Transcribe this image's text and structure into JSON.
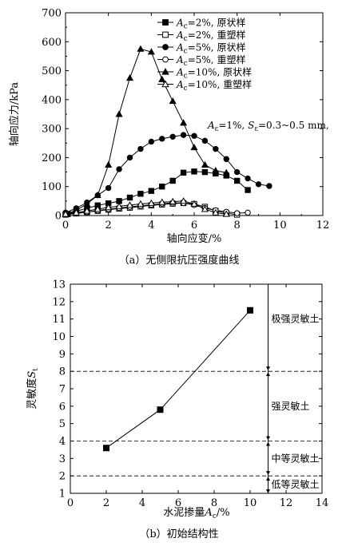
{
  "chart_data": [
    {
      "type": "line",
      "caption": "（a）无侧限抗压强度曲线",
      "xlabel": "轴向应变/%",
      "ylabel": "轴向应力/kPa",
      "xlim": [
        0,
        12
      ],
      "ylim": [
        0,
        700
      ],
      "xticks": [
        "0",
        "2",
        "4",
        "6",
        "8",
        "10",
        "12"
      ],
      "yticks": [
        "0",
        "100",
        "200",
        "300",
        "400",
        "500",
        "600",
        "700"
      ],
      "annotation": "Aε=1%, Sε=0.3~0.5 mm,",
      "legend_position": "top-right",
      "series": [
        {
          "name": "Ac=2%, 原状样",
          "marker": "square-filled",
          "points": [
            [
              0.1,
              5
            ],
            [
              0.5,
              15
            ],
            [
              1,
              25
            ],
            [
              1.5,
              35
            ],
            [
              2,
              42
            ],
            [
              2.5,
              50
            ],
            [
              3,
              62
            ],
            [
              3.5,
              75
            ],
            [
              4,
              85
            ],
            [
              4.5,
              100
            ],
            [
              5,
              120
            ],
            [
              5.5,
              148
            ],
            [
              6,
              152
            ],
            [
              6.5,
              150
            ],
            [
              7,
              145
            ],
            [
              7.5,
              138
            ],
            [
              8,
              120
            ],
            [
              8.5,
              88
            ]
          ]
        },
        {
          "name": "Ac=2%, 重塑样",
          "marker": "square-open",
          "points": [
            [
              0,
              3
            ],
            [
              0.5,
              7
            ],
            [
              1,
              12
            ],
            [
              1.5,
              16
            ],
            [
              2,
              20
            ],
            [
              2.5,
              24
            ],
            [
              3,
              27
            ],
            [
              3.5,
              31
            ],
            [
              4,
              35
            ],
            [
              4.5,
              38
            ],
            [
              5,
              41
            ],
            [
              5.5,
              43
            ],
            [
              6,
              40
            ],
            [
              6.5,
              30
            ],
            [
              7,
              16
            ],
            [
              7.5,
              8
            ],
            [
              8,
              3
            ]
          ]
        },
        {
          "name": "Ac=5%, 原状样",
          "marker": "circle-filled",
          "points": [
            [
              0,
              10
            ],
            [
              0.5,
              25
            ],
            [
              1,
              45
            ],
            [
              1.5,
              70
            ],
            [
              2,
              95
            ],
            [
              2.5,
              160
            ],
            [
              3,
              200
            ],
            [
              3.5,
              230
            ],
            [
              4,
              255
            ],
            [
              4.5,
              265
            ],
            [
              5,
              272
            ],
            [
              5.5,
              278
            ],
            [
              6,
              275
            ],
            [
              6.5,
              258
            ],
            [
              7,
              230
            ],
            [
              7.5,
              195
            ],
            [
              8,
              150
            ],
            [
              8.5,
              128
            ],
            [
              9,
              108
            ],
            [
              9.5,
              102
            ]
          ]
        },
        {
          "name": "Ac=5%, 重塑样",
          "marker": "circle-open",
          "points": [
            [
              0,
              5
            ],
            [
              0.5,
              8
            ],
            [
              1,
              12
            ],
            [
              1.5,
              17
            ],
            [
              2,
              22
            ],
            [
              2.5,
              26
            ],
            [
              3,
              30
            ],
            [
              3.5,
              34
            ],
            [
              4,
              37
            ],
            [
              4.5,
              41
            ],
            [
              5,
              44
            ],
            [
              5.5,
              43
            ],
            [
              6,
              36
            ],
            [
              6.5,
              26
            ],
            [
              7,
              18
            ],
            [
              7.5,
              13
            ],
            [
              8,
              8
            ],
            [
              8.5,
              10
            ]
          ]
        },
        {
          "name": "Ac=10%, 原状样",
          "marker": "triangle-filled",
          "points": [
            [
              0,
              5
            ],
            [
              0.5,
              18
            ],
            [
              1,
              40
            ],
            [
              1.5,
              70
            ],
            [
              2,
              175
            ],
            [
              2.5,
              350
            ],
            [
              3,
              475
            ],
            [
              3.5,
              575
            ],
            [
              4,
              565
            ],
            [
              4.5,
              470
            ],
            [
              5,
              395
            ],
            [
              5.5,
              320
            ],
            [
              6,
              235
            ],
            [
              6.5,
              175
            ],
            [
              7,
              155
            ],
            [
              7.5,
              148
            ]
          ]
        },
        {
          "name": "Ac=10%, 重塑样",
          "marker": "triangle-open",
          "points": [
            [
              0,
              5
            ],
            [
              0.5,
              10
            ],
            [
              1,
              16
            ],
            [
              1.5,
              22
            ],
            [
              2,
              28
            ],
            [
              2.5,
              32
            ],
            [
              3,
              36
            ],
            [
              3.5,
              40
            ],
            [
              4,
              43
            ],
            [
              4.5,
              46
            ],
            [
              5,
              48
            ],
            [
              5.5,
              50
            ],
            [
              6,
              40
            ],
            [
              6.5,
              22
            ],
            [
              7,
              10
            ],
            [
              7.5,
              5
            ]
          ]
        }
      ]
    },
    {
      "type": "line",
      "caption": "（b）初始结构性",
      "xlabel": "水泥掺量Ac/%",
      "ylabel": "灵敏度St",
      "xlim": [
        0,
        14
      ],
      "ylim": [
        1,
        13
      ],
      "xticks": [
        "0",
        "2",
        "4",
        "6",
        "8",
        "10",
        "12",
        "14"
      ],
      "yticks": [
        "1",
        "2",
        "3",
        "4",
        "5",
        "6",
        "7",
        "8",
        "9",
        "10",
        "11",
        "12",
        "13"
      ],
      "series": [
        {
          "name": "",
          "marker": "square-filled",
          "points": [
            [
              2,
              3.6
            ],
            [
              5,
              5.8
            ],
            [
              10,
              11.5
            ]
          ]
        }
      ],
      "thresholds": [
        2,
        4,
        8
      ],
      "zone_axis_x": 11,
      "zones": [
        {
          "label": "极强灵敏土",
          "from": 8,
          "to": 13
        },
        {
          "label": "强灵敏土",
          "from": 4,
          "to": 8
        },
        {
          "label": "中等灵敏土",
          "from": 2,
          "to": 4
        },
        {
          "label": "低等灵敏土",
          "from": 1,
          "to": 2
        }
      ]
    }
  ]
}
